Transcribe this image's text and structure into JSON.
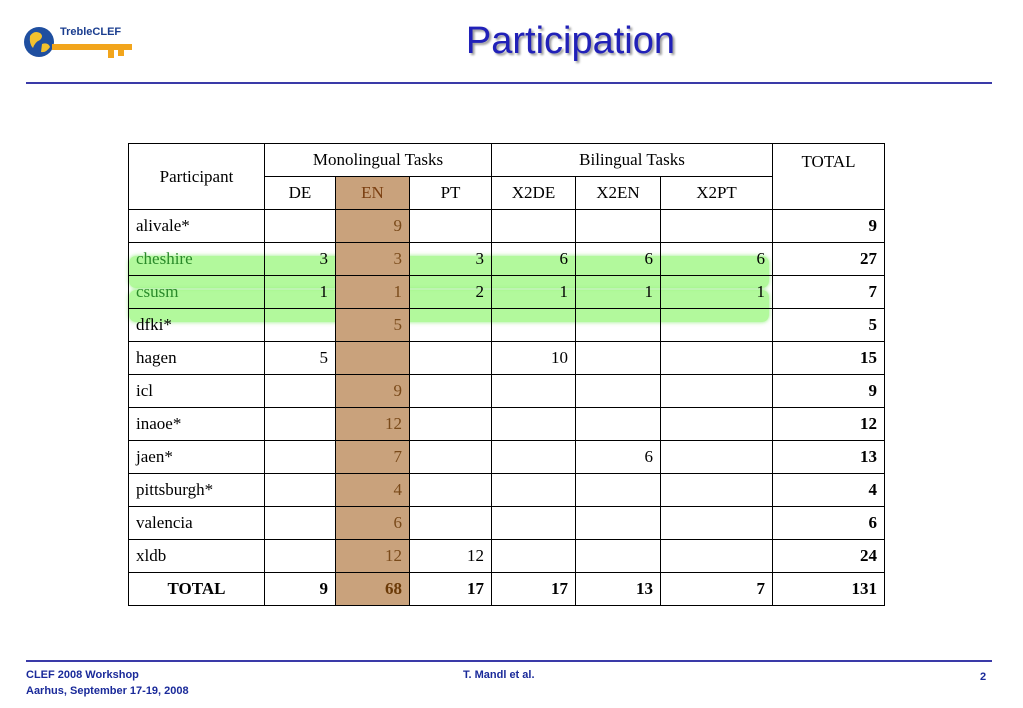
{
  "header": {
    "title": "Participation",
    "logo_text": "TrebleCLEF"
  },
  "table": {
    "header_participant": "Participant",
    "header_mono": "Monolingual Tasks",
    "header_bi": "Bilingual Tasks",
    "header_total": "TOTAL",
    "subheaders": [
      "DE",
      "EN",
      "PT",
      "X2DE",
      "X2EN",
      "X2PT"
    ],
    "rows": [
      {
        "name": "alivale*",
        "DE": "",
        "EN": "9",
        "PT": "",
        "X2DE": "",
        "X2EN": "",
        "X2PT": "",
        "total": "9"
      },
      {
        "name": "cheshire",
        "DE": "3",
        "EN": "3",
        "PT": "3",
        "X2DE": "6",
        "X2EN": "6",
        "X2PT": "6",
        "total": "27"
      },
      {
        "name": "csusm",
        "DE": "1",
        "EN": "1",
        "PT": "2",
        "X2DE": "1",
        "X2EN": "1",
        "X2PT": "1",
        "total": "7"
      },
      {
        "name": "dfki*",
        "DE": "",
        "EN": "5",
        "PT": "",
        "X2DE": "",
        "X2EN": "",
        "X2PT": "",
        "total": "5"
      },
      {
        "name": "hagen",
        "DE": "5",
        "EN": "",
        "PT": "",
        "X2DE": "10",
        "X2EN": "",
        "X2PT": "",
        "total": "15"
      },
      {
        "name": "icl",
        "DE": "",
        "EN": "9",
        "PT": "",
        "X2DE": "",
        "X2EN": "",
        "X2PT": "",
        "total": "9"
      },
      {
        "name": "inaoe*",
        "DE": "",
        "EN": "12",
        "PT": "",
        "X2DE": "",
        "X2EN": "",
        "X2PT": "",
        "total": "12"
      },
      {
        "name": "jaen*",
        "DE": "",
        "EN": "7",
        "PT": "",
        "X2DE": "",
        "X2EN": "6",
        "X2PT": "",
        "total": "13"
      },
      {
        "name": "pittsburgh*",
        "DE": "",
        "EN": "4",
        "PT": "",
        "X2DE": "",
        "X2EN": "",
        "X2PT": "",
        "total": "4"
      },
      {
        "name": "valencia",
        "DE": "",
        "EN": "6",
        "PT": "",
        "X2DE": "",
        "X2EN": "",
        "X2PT": "",
        "total": "6"
      },
      {
        "name": "xldb",
        "DE": "",
        "EN": "12",
        "PT": "12",
        "X2DE": "",
        "X2EN": "",
        "X2PT": "",
        "total": "24"
      }
    ],
    "totals": {
      "label": "TOTAL",
      "DE": "9",
      "EN": "68",
      "PT": "17",
      "X2DE": "17",
      "X2EN": "13",
      "X2PT": "7",
      "total": "131"
    },
    "highlighted_rows": [
      "cheshire",
      "csusm"
    ],
    "highlighted_column": "EN"
  },
  "footer": {
    "left_line1": "CLEF 2008 Workshop",
    "left_line2": "Aarhus, September 17-19, 2008",
    "center": "T. Mandl et al.",
    "page_number": "2"
  },
  "colors": {
    "title": "#2121b8",
    "rule": "#3a3aa8",
    "en_column": "#c9a27c",
    "highlight": "#7ef55a",
    "footer_text": "#1a2a9a"
  }
}
